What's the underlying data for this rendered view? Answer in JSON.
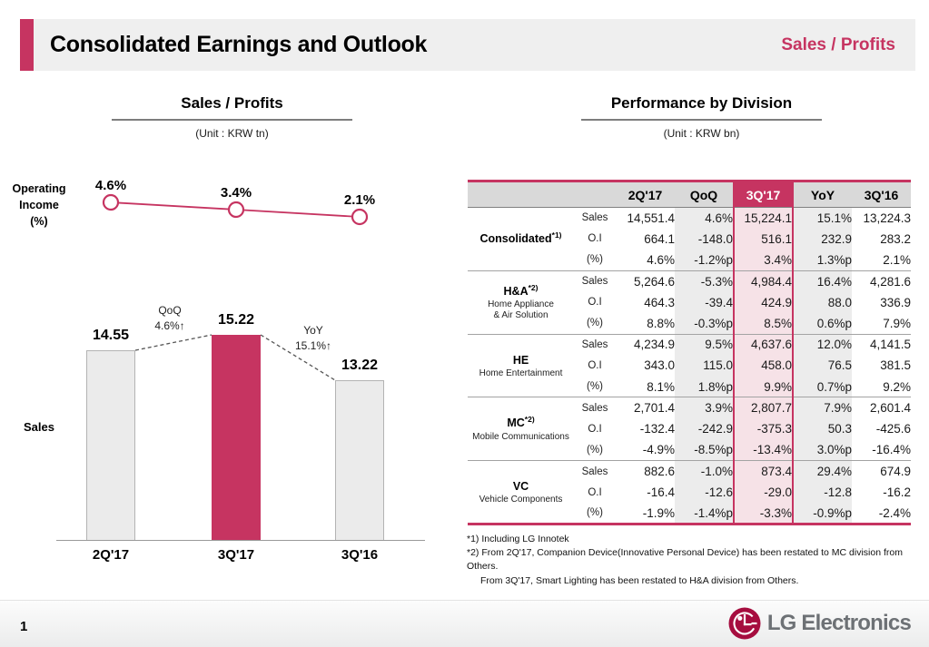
{
  "colors": {
    "accent": "#c63461",
    "highlight_column_bg": "#f6e2e7",
    "qoq_yoy_column_bg": "#ececec",
    "header_row_bg": "#d9d9d9",
    "bar_gray": "#ebebeb",
    "logo_red": "#a60d3f"
  },
  "header": {
    "title": "Consolidated Earnings and Outlook",
    "topic": "Sales / Profits"
  },
  "left_panel": {
    "title": "Sales / Profits",
    "unit": "(Unit : KRW tn)",
    "oi_label": "Operating\nIncome\n(%)",
    "sales_label": "Sales"
  },
  "chart_data": [
    {
      "type": "line",
      "name": "operating-income-percent",
      "title": "Operating Income (%)",
      "categories": [
        "2Q'17",
        "3Q'17",
        "3Q'16"
      ],
      "values": [
        4.6,
        3.4,
        2.1
      ],
      "labels": [
        "4.6%",
        "3.4%",
        "2.1%"
      ],
      "marker": "open-circle"
    },
    {
      "type": "bar",
      "name": "sales-krw-tn",
      "title": "Sales",
      "unit": "KRW tn",
      "categories": [
        "2Q'17",
        "3Q'17",
        "3Q'16"
      ],
      "values": [
        14.55,
        15.22,
        13.22
      ],
      "labels": [
        "14.55",
        "15.22",
        "13.22"
      ],
      "highlight_index": 1,
      "annotations": [
        {
          "text": "QoQ\n4.6%↑"
        },
        {
          "text": "YoY\n15.1%↑"
        }
      ]
    }
  ],
  "right_panel": {
    "title": "Performance by Division",
    "unit": "(Unit : KRW bn)",
    "table": {
      "columns": [
        "2Q'17",
        "QoQ",
        "3Q'17",
        "YoY",
        "3Q'16"
      ],
      "groups": [
        {
          "name": "Consolidated",
          "sup": "*1)",
          "desc": "",
          "rows": [
            {
              "label": "Sales",
              "values": [
                "14,551.4",
                "4.6%",
                "15,224.1",
                "15.1%",
                "13,224.3"
              ]
            },
            {
              "label": "O.I",
              "values": [
                "664.1",
                "-148.0",
                "516.1",
                "232.9",
                "283.2"
              ]
            },
            {
              "label": "(%)",
              "values": [
                "4.6%",
                "-1.2%p",
                "3.4%",
                "1.3%p",
                "2.1%"
              ]
            }
          ]
        },
        {
          "name": "H&A",
          "sup": "*2)",
          "desc": "Home Appliance\n& Air Solution",
          "rows": [
            {
              "label": "Sales",
              "values": [
                "5,264.6",
                "-5.3%",
                "4,984.4",
                "16.4%",
                "4,281.6"
              ]
            },
            {
              "label": "O.I",
              "values": [
                "464.3",
                "-39.4",
                "424.9",
                "88.0",
                "336.9"
              ]
            },
            {
              "label": "(%)",
              "values": [
                "8.8%",
                "-0.3%p",
                "8.5%",
                "0.6%p",
                "7.9%"
              ]
            }
          ]
        },
        {
          "name": "HE",
          "sup": "",
          "desc": "Home Entertainment",
          "rows": [
            {
              "label": "Sales",
              "values": [
                "4,234.9",
                "9.5%",
                "4,637.6",
                "12.0%",
                "4,141.5"
              ]
            },
            {
              "label": "O.I",
              "values": [
                "343.0",
                "115.0",
                "458.0",
                "76.5",
                "381.5"
              ]
            },
            {
              "label": "(%)",
              "values": [
                "8.1%",
                "1.8%p",
                "9.9%",
                "0.7%p",
                "9.2%"
              ]
            }
          ]
        },
        {
          "name": "MC",
          "sup": "*2)",
          "desc": "Mobile Communications",
          "rows": [
            {
              "label": "Sales",
              "values": [
                "2,701.4",
                "3.9%",
                "2,807.7",
                "7.9%",
                "2,601.4"
              ]
            },
            {
              "label": "O.I",
              "values": [
                "-132.4",
                "-242.9",
                "-375.3",
                "50.3",
                "-425.6"
              ]
            },
            {
              "label": "(%)",
              "values": [
                "-4.9%",
                "-8.5%p",
                "-13.4%",
                "3.0%p",
                "-16.4%"
              ]
            }
          ]
        },
        {
          "name": "VC",
          "sup": "",
          "desc": "Vehicle Components",
          "rows": [
            {
              "label": "Sales",
              "values": [
                "882.6",
                "-1.0%",
                "873.4",
                "29.4%",
                "674.9"
              ]
            },
            {
              "label": "O.I",
              "values": [
                "-16.4",
                "-12.6",
                "-29.0",
                "-12.8",
                "-16.2"
              ]
            },
            {
              "label": "(%)",
              "values": [
                "-1.9%",
                "-1.4%p",
                "-3.3%",
                "-0.9%p",
                "-2.4%"
              ]
            }
          ]
        }
      ]
    },
    "footnotes": [
      "*1) Including LG Innotek",
      "*2) From 2Q'17, Companion Device(Innovative Personal Device) has been restated to MC division from Others.",
      "From 3Q'17, Smart Lighting has been restated to H&A division from Others."
    ]
  },
  "footer": {
    "page": "1",
    "logo_text": "LG Electronics"
  }
}
